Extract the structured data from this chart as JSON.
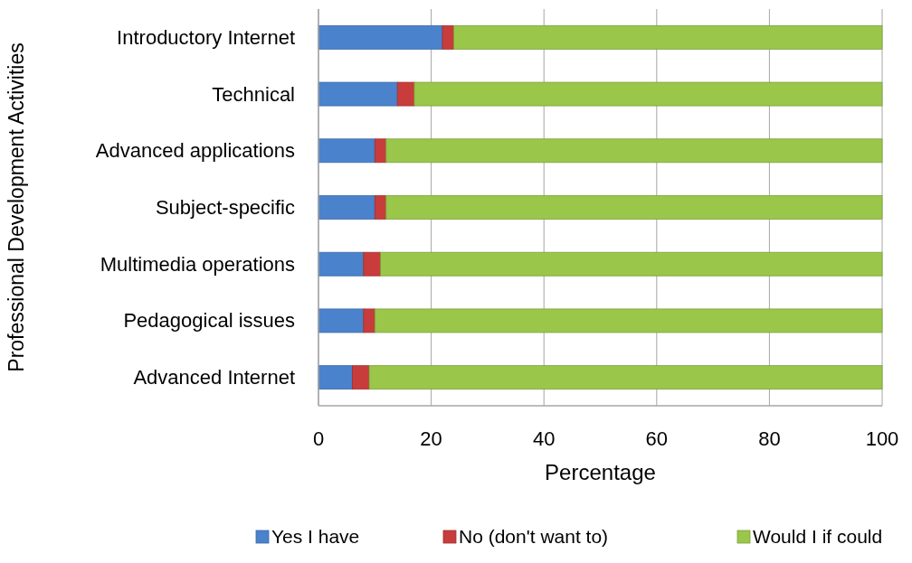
{
  "chart_data": {
    "type": "bar",
    "orientation": "horizontal",
    "stacked": true,
    "ylabel": "Professional Development Activities",
    "xlabel": "Percentage",
    "categories": [
      "Introductory Internet",
      "Technical",
      "Advanced applications",
      "Subject-specific",
      "Multimedia operations",
      "Pedagogical issues",
      "Advanced Internet"
    ],
    "series": [
      {
        "name": "Yes I have",
        "color": "#4a82cc",
        "values": [
          22,
          14,
          10,
          10,
          8,
          8,
          6
        ]
      },
      {
        "name": "No (don't want to)",
        "color": "#c83c3c",
        "values": [
          2,
          3,
          2,
          2,
          3,
          2,
          3
        ]
      },
      {
        "name": "Would I if could",
        "color": "#9ac64a",
        "values": [
          76,
          83,
          88,
          88,
          89,
          90,
          91
        ]
      }
    ],
    "xlim": [
      0,
      100
    ],
    "xticks": [
      0,
      20,
      40,
      60,
      80,
      100
    ],
    "grid": "x",
    "legend": "bottom"
  }
}
